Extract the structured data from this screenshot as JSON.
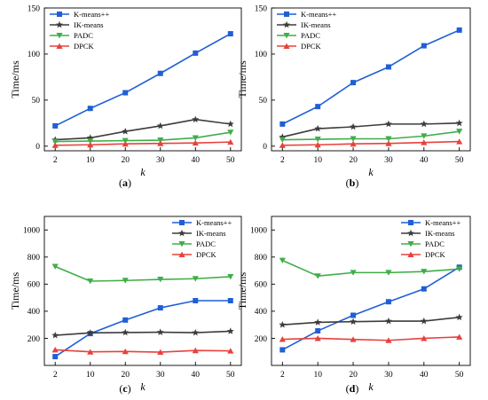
{
  "series_style": [
    {
      "color": "#1f5fd6",
      "marker": "square"
    },
    {
      "color": "#3c3c3c",
      "marker": "star"
    },
    {
      "color": "#3fae49",
      "marker": "triangle-down"
    },
    {
      "color": "#e8413c",
      "marker": "triangle-up"
    }
  ],
  "chart_data": [
    {
      "type": "line",
      "panel_label": "(a)",
      "xlabel": "k",
      "ylabel": "Time/ms",
      "x": [
        2,
        10,
        20,
        30,
        40,
        50
      ],
      "ylim": [
        -5,
        150
      ],
      "yticks": [
        0,
        50,
        100,
        150
      ],
      "legend_position": "top-left",
      "series": [
        {
          "name": "K-means++",
          "values": [
            22,
            41,
            58,
            79,
            101,
            122
          ]
        },
        {
          "name": "IK-means",
          "values": [
            7,
            9,
            16,
            22,
            29,
            24
          ]
        },
        {
          "name": "PADC",
          "values": [
            5,
            5.5,
            6,
            6.5,
            9,
            15
          ]
        },
        {
          "name": "DPCK",
          "values": [
            1,
            1.5,
            2.5,
            3,
            3.5,
            4.5
          ]
        }
      ]
    },
    {
      "type": "line",
      "panel_label": "(b)",
      "xlabel": "k",
      "ylabel": "Time/ms",
      "x": [
        2,
        10,
        20,
        30,
        40,
        50
      ],
      "ylim": [
        -5,
        150
      ],
      "yticks": [
        0,
        50,
        100,
        150
      ],
      "legend_position": "top-left",
      "series": [
        {
          "name": "K-means++",
          "values": [
            24,
            43,
            69,
            86,
            109,
            126
          ]
        },
        {
          "name": "IK-means",
          "values": [
            10,
            19,
            21,
            24,
            24,
            25
          ]
        },
        {
          "name": "PADC",
          "values": [
            7,
            7.5,
            8,
            8,
            11,
            16
          ]
        },
        {
          "name": "DPCK",
          "values": [
            1,
            1.5,
            2.5,
            3,
            4,
            5
          ]
        }
      ]
    },
    {
      "type": "line",
      "panel_label": "(c)",
      "xlabel": "k",
      "ylabel": "Time/ms",
      "x": [
        2,
        10,
        20,
        30,
        40,
        50
      ],
      "ylim": [
        0,
        1100
      ],
      "yticks": [
        200,
        400,
        600,
        800,
        1000
      ],
      "legend_position": "top-right",
      "series": [
        {
          "name": "K-means++",
          "values": [
            65,
            235,
            335,
            425,
            478,
            478
          ]
        },
        {
          "name": "IK-means",
          "values": [
            222,
            240,
            243,
            245,
            242,
            252
          ]
        },
        {
          "name": "PADC",
          "values": [
            730,
            622,
            627,
            635,
            640,
            655
          ]
        },
        {
          "name": "DPCK",
          "values": [
            115,
            100,
            103,
            98,
            110,
            107
          ]
        }
      ]
    },
    {
      "type": "line",
      "panel_label": "(d)",
      "xlabel": "k",
      "ylabel": "Time/ms",
      "x": [
        2,
        10,
        20,
        30,
        40,
        50
      ],
      "ylim": [
        0,
        1100
      ],
      "yticks": [
        200,
        400,
        600,
        800,
        1000
      ],
      "legend_position": "top-right",
      "series": [
        {
          "name": "K-means++",
          "values": [
            115,
            255,
            370,
            470,
            565,
            725
          ]
        },
        {
          "name": "IK-means",
          "values": [
            300,
            318,
            323,
            327,
            327,
            355
          ]
        },
        {
          "name": "PADC",
          "values": [
            775,
            660,
            685,
            685,
            693,
            712
          ]
        },
        {
          "name": "DPCK",
          "values": [
            193,
            200,
            192,
            185,
            200,
            210
          ]
        }
      ]
    }
  ]
}
